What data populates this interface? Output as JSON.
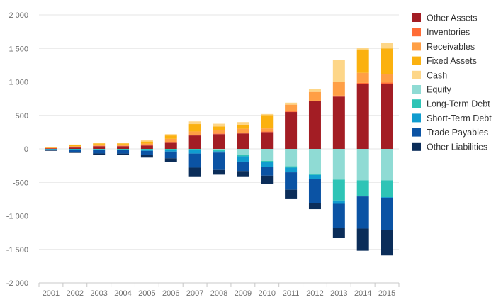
{
  "chart_data": {
    "type": "bar",
    "stacked": true,
    "categories": [
      "2001",
      "2002",
      "2003",
      "2004",
      "2005",
      "2006",
      "2007",
      "2008",
      "2009",
      "2010",
      "2011",
      "2012",
      "2013",
      "2014",
      "2015"
    ],
    "ylim": [
      -2000,
      2000
    ],
    "yticks": [
      -2000,
      -1500,
      -1000,
      -500,
      0,
      500,
      1000,
      1500,
      2000
    ],
    "ytick_labels": [
      "-2 000",
      "-1 500",
      "-1 000",
      "-500",
      "0",
      "500",
      "1 000",
      "1 500",
      "2 000"
    ],
    "grid": true,
    "legend_position": "right",
    "series": [
      {
        "name": "Other Assets",
        "color": "#a31d24",
        "values": [
          8,
          20,
          40,
          40,
          50,
          100,
          200,
          220,
          230,
          250,
          550,
          710,
          780,
          970,
          970
        ]
      },
      {
        "name": "Inventories",
        "color": "#ff6b35",
        "values": [
          2,
          5,
          5,
          5,
          5,
          5,
          10,
          10,
          10,
          10,
          10,
          10,
          15,
          15,
          20
        ]
      },
      {
        "name": "Receivables",
        "color": "#ff9f45",
        "values": [
          5,
          15,
          20,
          20,
          25,
          45,
          50,
          55,
          60,
          45,
          100,
          130,
          200,
          150,
          130
        ]
      },
      {
        "name": "Fixed Assets",
        "color": "#fbb10f",
        "values": [
          5,
          15,
          15,
          15,
          30,
          50,
          110,
          50,
          60,
          200,
          0,
          0,
          0,
          350,
          380
        ]
      },
      {
        "name": "Cash",
        "color": "#fdd688",
        "values": [
          5,
          10,
          10,
          10,
          20,
          20,
          40,
          40,
          40,
          15,
          30,
          40,
          330,
          20,
          80
        ]
      },
      {
        "name": "Equity",
        "color": "#8fdbd4",
        "values": [
          0,
          0,
          0,
          0,
          0,
          0,
          0,
          -20,
          -90,
          -180,
          -260,
          -370,
          -460,
          -470,
          -470
        ]
      },
      {
        "name": "Long-Term Debt",
        "color": "#2ec4b6",
        "values": [
          -3,
          -5,
          -8,
          -10,
          -10,
          -20,
          -20,
          -15,
          -20,
          -20,
          -20,
          -20,
          -310,
          -230,
          -250
        ]
      },
      {
        "name": "Short-Term Debt",
        "color": "#109ccf",
        "values": [
          -5,
          -10,
          -10,
          -10,
          -20,
          -20,
          -50,
          -20,
          -80,
          -70,
          -70,
          -60,
          -50,
          -10,
          -10
        ]
      },
      {
        "name": "Trade Payables",
        "color": "#0b53a4",
        "values": [
          -15,
          -30,
          -50,
          -50,
          -60,
          -100,
          -210,
          -260,
          -140,
          -130,
          -260,
          -360,
          -360,
          -480,
          -480
        ]
      },
      {
        "name": "Other Liabilities",
        "color": "#0b2d59",
        "values": [
          -7,
          -15,
          -25,
          -25,
          -40,
          -60,
          -130,
          -70,
          -80,
          -120,
          -130,
          -90,
          -150,
          -330,
          -380
        ]
      }
    ]
  }
}
